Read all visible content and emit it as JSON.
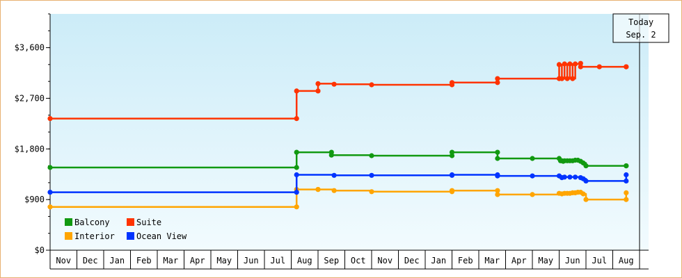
{
  "chart_data": {
    "type": "line",
    "step": true,
    "ylim": [
      0,
      4200
    ],
    "yticks": [
      {
        "value": 0,
        "label": "$0"
      },
      {
        "value": 900,
        "label": "$900"
      },
      {
        "value": 1800,
        "label": "$1,800"
      },
      {
        "value": 2700,
        "label": "$2,700"
      },
      {
        "value": 3600,
        "label": "$3,600"
      }
    ],
    "categories": [
      "Nov",
      "Dec",
      "Jan",
      "Feb",
      "Mar",
      "Apr",
      "May",
      "Jun",
      "Jul",
      "Aug",
      "Sep",
      "Oct",
      "Nov",
      "Dec",
      "Jan",
      "Feb",
      "Mar",
      "Apr",
      "May",
      "Jun",
      "Jul",
      "Aug"
    ],
    "today": {
      "line1": "Today",
      "line2": "Sep. 2",
      "x": 22.0
    },
    "legend": [
      {
        "name": "Balcony",
        "color": "#119911"
      },
      {
        "name": "Suite",
        "color": "#ff3300"
      },
      {
        "name": "Interior",
        "color": "#ffa500"
      },
      {
        "name": "Ocean View",
        "color": "#0033ff"
      }
    ],
    "series": [
      {
        "name": "Balcony",
        "color": "#119911",
        "x": [
          0.0,
          9.2,
          9.2,
          10.5,
          10.5,
          12.0,
          15.0,
          15.0,
          16.7,
          16.7,
          18.0,
          19.0,
          19.05,
          19.1,
          19.15,
          19.2,
          19.3,
          19.4,
          19.5,
          19.6,
          19.7,
          19.8,
          19.9,
          20.0,
          21.5,
          21.5
        ],
        "y": [
          1470,
          1470,
          1740,
          1740,
          1690,
          1680,
          1680,
          1740,
          1740,
          1630,
          1630,
          1630,
          1590,
          1590,
          1580,
          1590,
          1590,
          1590,
          1590,
          1600,
          1600,
          1580,
          1550,
          1500,
          1500,
          1500
        ]
      },
      {
        "name": "Suite",
        "color": "#ff3300",
        "x": [
          0.0,
          9.2,
          9.2,
          10.0,
          10.0,
          10.6,
          12.0,
          15.0,
          15.0,
          16.7,
          16.7,
          19.0,
          19.0,
          19.1,
          19.2,
          19.3,
          19.4,
          19.5,
          19.6,
          19.8,
          19.8,
          20.5,
          21.5,
          21.5
        ],
        "y": [
          2340,
          2340,
          2830,
          2830,
          2960,
          2950,
          2940,
          2940,
          2980,
          2980,
          3050,
          3050,
          3300,
          3050,
          3310,
          3050,
          3310,
          3050,
          3310,
          3320,
          3260,
          3260,
          3260,
          3260
        ]
      },
      {
        "name": "Interior",
        "color": "#ffa500",
        "x": [
          0.0,
          9.2,
          9.2,
          10.0,
          10.0,
          10.6,
          12.0,
          15.0,
          15.0,
          16.7,
          16.7,
          18.0,
          19.0,
          19.1,
          19.2,
          19.3,
          19.4,
          19.5,
          19.6,
          19.7,
          19.8,
          19.9,
          20.0,
          21.5,
          21.5
        ],
        "y": [
          770,
          770,
          1080,
          1080,
          1080,
          1060,
          1040,
          1040,
          1060,
          1060,
          990,
          990,
          1010,
          1000,
          1010,
          1010,
          1010,
          1020,
          1020,
          1030,
          1030,
          1000,
          900,
          900,
          1020
        ]
      },
      {
        "name": "Ocean View",
        "color": "#0033ff",
        "x": [
          0.0,
          9.2,
          9.2,
          10.6,
          12.0,
          15.0,
          15.0,
          16.7,
          16.7,
          18.0,
          19.0,
          19.1,
          19.2,
          19.4,
          19.6,
          19.8,
          19.9,
          20.0,
          21.5,
          21.5
        ],
        "y": [
          1030,
          1030,
          1340,
          1330,
          1330,
          1330,
          1340,
          1340,
          1320,
          1320,
          1320,
          1290,
          1300,
          1300,
          1300,
          1290,
          1270,
          1230,
          1230,
          1340
        ]
      }
    ]
  }
}
